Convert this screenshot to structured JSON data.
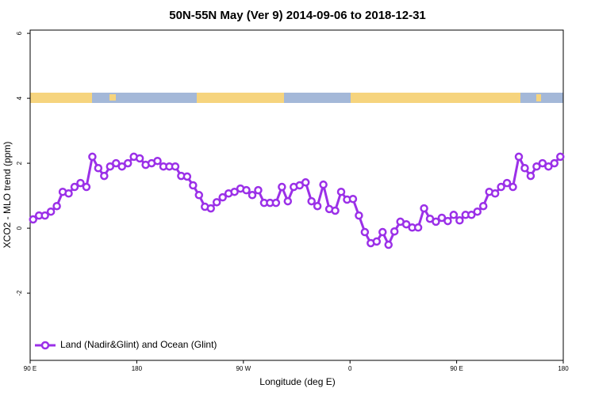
{
  "chart_data": {
    "type": "line",
    "title": "50N-55N May (Ver 9)   2014-09-06 to 2018-12-31",
    "x_label": "Longitude (deg E)",
    "y_label": "XCO2 - MLO trend (ppm)",
    "x": [
      92.5,
      97.5,
      102.5,
      107.5,
      112.5,
      117.5,
      122.5,
      127.5,
      132.5,
      137.5,
      142.5,
      147.5,
      152.5,
      157.5,
      162.5,
      167.5,
      172.5,
      177.5,
      182.5,
      187.5,
      192.5,
      197.5,
      202.5,
      207.5,
      212.5,
      217.5,
      222.5,
      227.5,
      232.5,
      237.5,
      242.5,
      247.5,
      252.5,
      257.5,
      262.5,
      267.5,
      272.5,
      277.5,
      282.5,
      287.5,
      292.5,
      297.5,
      302.5,
      307.5,
      312.5,
      317.5,
      322.5,
      327.5,
      332.5,
      337.5,
      342.5,
      347.5,
      352.5,
      357.5,
      362.5,
      367.5,
      372.5,
      377.5,
      382.5,
      387.5,
      392.5,
      397.5,
      402.5,
      407.5,
      412.5,
      417.5,
      422.5,
      427.5,
      432.5,
      437.5,
      442.5,
      447.5,
      452.5,
      457.5,
      462.5,
      467.5,
      472.5,
      477.5,
      482.5,
      487.5,
      492.5,
      497.5,
      502.5,
      507.5,
      512.5,
      517.5,
      522.5,
      527.5,
      532.5,
      537.5
    ],
    "series": [
      {
        "name": "Land (Nadir&Glint) and Ocean (Glint)",
        "color": "#9b30e8",
        "values": [
          0.27,
          0.39,
          0.39,
          0.51,
          0.68,
          1.12,
          1.07,
          1.27,
          1.39,
          1.27,
          2.2,
          1.85,
          1.61,
          1.9,
          2.0,
          1.9,
          2.0,
          2.2,
          2.15,
          1.95,
          2.0,
          2.07,
          1.9,
          1.9,
          1.9,
          1.61,
          1.59,
          1.32,
          1.02,
          0.66,
          0.61,
          0.8,
          0.95,
          1.07,
          1.12,
          1.22,
          1.17,
          1.02,
          1.17,
          0.78,
          0.78,
          0.78,
          1.27,
          0.83,
          1.27,
          1.32,
          1.41,
          0.83,
          0.68,
          1.34,
          0.59,
          0.54,
          1.12,
          0.88,
          0.9,
          0.39,
          -0.12,
          -0.46,
          -0.41,
          -0.12,
          -0.51,
          -0.1,
          0.2,
          0.12,
          0.02,
          0.02,
          0.61,
          0.29,
          0.2,
          0.32,
          0.22,
          0.41,
          0.24,
          0.41,
          0.41,
          0.51,
          0.68,
          1.12,
          1.07,
          1.27,
          1.39,
          1.27,
          2.2,
          1.85,
          1.61,
          1.9,
          2.0,
          1.9,
          2.0,
          2.2
        ]
      }
    ],
    "xlim": [
      90,
      540
    ],
    "xticks": [
      {
        "value": 90,
        "label": "90 E"
      },
      180,
      {
        "value": 270,
        "label": "90 W"
      },
      {
        "value": 360,
        "label": "0"
      },
      {
        "value": 450,
        "label": "90 E"
      },
      {
        "value": 540,
        "label": "180"
      }
    ],
    "ylim": [
      -4.07,
      6.1
    ],
    "yticks": [
      -2,
      0,
      2,
      4,
      6
    ],
    "legend": "bottom-left"
  }
}
